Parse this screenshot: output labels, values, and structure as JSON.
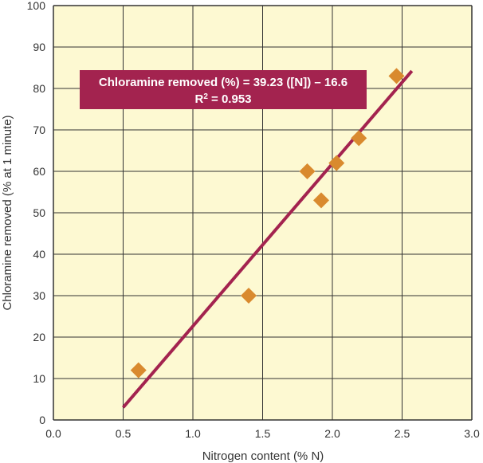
{
  "chart_data": {
    "type": "scatter",
    "xlabel": "Nitrogen content (% N)",
    "ylabel": "Chloramine removed (% at 1 minute)",
    "xlim": [
      0,
      3.0
    ],
    "ylim": [
      0,
      100
    ],
    "x_ticks": [
      "0.0",
      "0.5",
      "1.0",
      "1.5",
      "2.0",
      "2.5",
      "3.0"
    ],
    "y_ticks": [
      "0",
      "10",
      "20",
      "30",
      "40",
      "50",
      "60",
      "70",
      "80",
      "90",
      "100"
    ],
    "grid": true,
    "points": [
      {
        "x": 0.61,
        "y": 12
      },
      {
        "x": 1.4,
        "y": 30
      },
      {
        "x": 1.82,
        "y": 60
      },
      {
        "x": 1.92,
        "y": 53
      },
      {
        "x": 2.03,
        "y": 62
      },
      {
        "x": 2.19,
        "y": 68
      },
      {
        "x": 2.46,
        "y": 83
      }
    ],
    "fit": {
      "slope": 39.23,
      "intercept": -16.6,
      "x_range": [
        0.5,
        2.57
      ]
    },
    "annotation": {
      "line1": "Chloramine removed (%) = 39.23 ([N]) – 16.6",
      "r2_label": "R",
      "r2_sup": "2",
      "r2_value": " = 0.953"
    },
    "colors": {
      "background": "#fdf9d2",
      "marker": "#d98a2e",
      "fit_line": "#a3234f",
      "annotation_bg": "#a3234f",
      "grid": "#333333"
    }
  }
}
